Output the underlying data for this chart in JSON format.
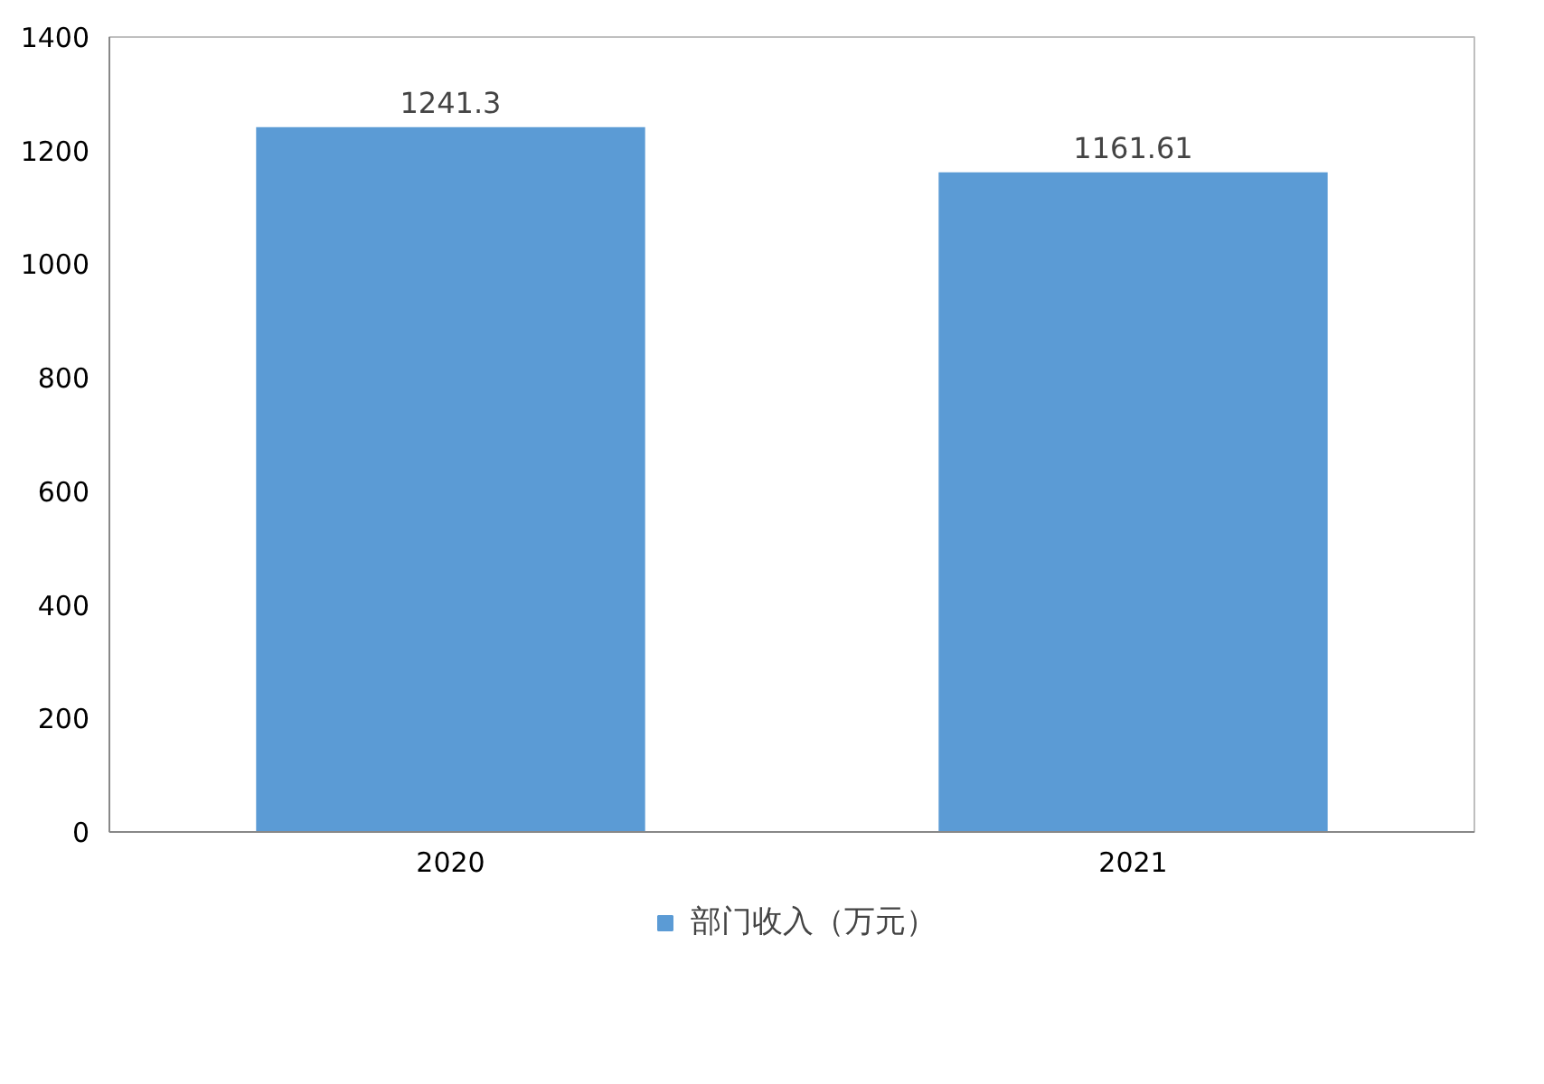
{
  "chart_data": {
    "type": "bar",
    "categories": [
      "2020",
      "2021"
    ],
    "series": [
      {
        "name": "部门收入（万元）",
        "color": "#5b9bd5",
        "values": [
          1241.3,
          1161.61
        ]
      }
    ],
    "ylim": [
      0,
      1400
    ],
    "yticks": [
      0,
      200,
      400,
      600,
      800,
      1000,
      1200,
      1400
    ],
    "grid": false,
    "legend": "bottom",
    "data_labels": true
  }
}
